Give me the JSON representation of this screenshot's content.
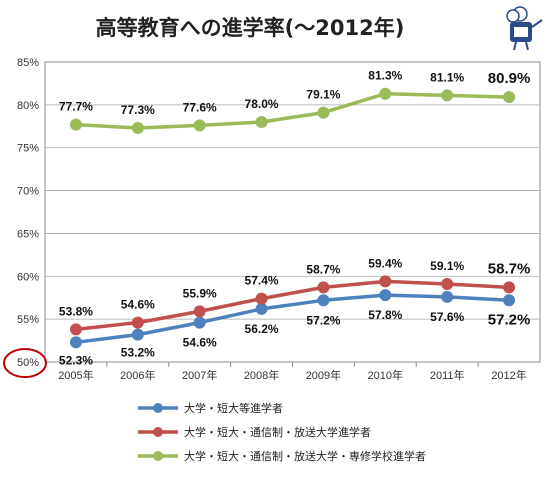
{
  "chart_data": {
    "type": "line",
    "title": "高等教育への進学率(～2012年)",
    "categories": [
      "2005年",
      "2006年",
      "2007年",
      "2008年",
      "2009年",
      "2010年",
      "2011年",
      "2012年"
    ],
    "series": [
      {
        "name": "大学・短大等進学者",
        "color": "#4f81bd",
        "values": [
          52.3,
          53.2,
          54.6,
          56.2,
          57.2,
          57.8,
          57.6,
          57.2
        ],
        "labels": [
          "52.3%",
          "53.2%",
          "54.6%",
          "56.2%",
          "57.2%",
          "57.8%",
          "57.6%",
          "57.2%"
        ]
      },
      {
        "name": "大学・短大・通信制・放送大学進学者",
        "color": "#c0504d",
        "values": [
          53.8,
          54.6,
          55.9,
          57.4,
          58.7,
          59.4,
          59.1,
          58.7
        ],
        "labels": [
          "53.8%",
          "54.6%",
          "55.9%",
          "57.4%",
          "58.7%",
          "59.4%",
          "59.1%",
          "58.7%"
        ]
      },
      {
        "name": "大学・短大・通信制・放送大学・専修学校進学者",
        "color": "#9bbb59",
        "values": [
          77.7,
          77.3,
          77.6,
          78.0,
          79.1,
          81.3,
          81.1,
          80.9
        ],
        "labels": [
          "77.7%",
          "77.3%",
          "77.6%",
          "78.0%",
          "79.1%",
          "81.3%",
          "81.1%",
          "80.9%"
        ]
      }
    ],
    "ylim": [
      50,
      85
    ],
    "yticks": [
      50,
      55,
      60,
      65,
      70,
      75,
      80,
      85
    ],
    "ytick_labels": [
      "50%",
      "55%",
      "60%",
      "65%",
      "70%",
      "75%",
      "80%",
      "85%"
    ],
    "grid": true,
    "legend_position": "bottom",
    "annotation": "red circle around 50% axis label",
    "annotation_color": "#c00000"
  }
}
